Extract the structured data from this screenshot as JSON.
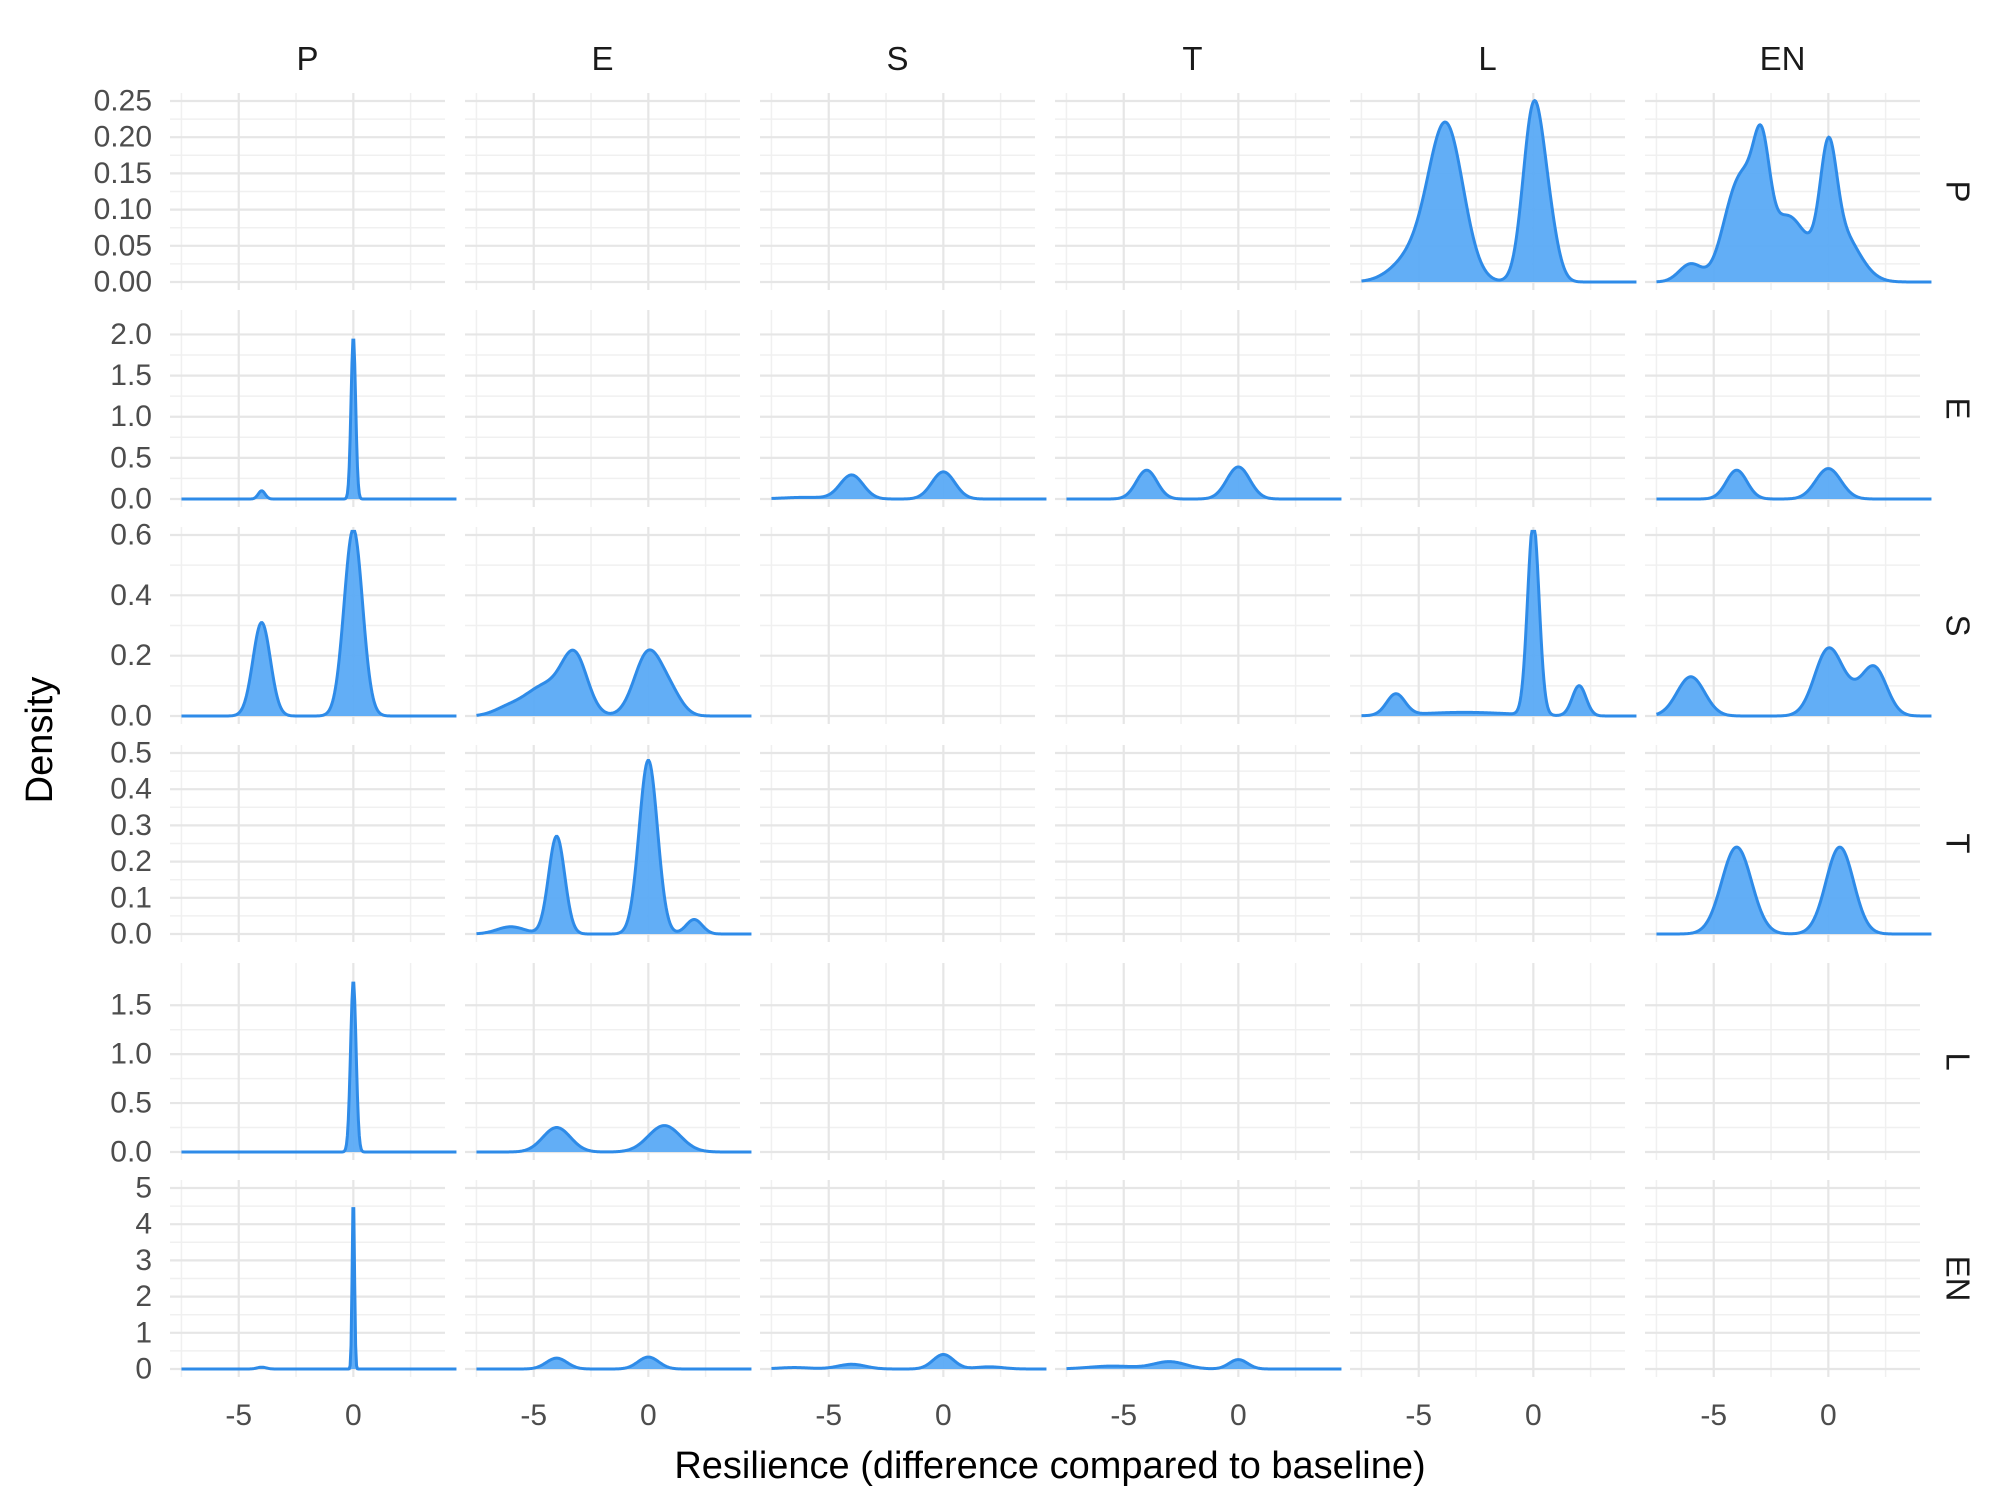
{
  "chart_data": {
    "type": "area",
    "title": "",
    "xlabel": "Resilience (difference compared to baseline)",
    "ylabel": "Density",
    "x_ticks": [
      "-5",
      "0"
    ],
    "xlim": [
      -8,
      4
    ],
    "grid": true,
    "fill_color": "#5aaaf5",
    "line_color": "#2e8be8",
    "col_strips": [
      "P",
      "E",
      "S",
      "T",
      "L",
      "EN"
    ],
    "row_strips": [
      "P",
      "E",
      "S",
      "T",
      "L",
      "EN"
    ],
    "rows": [
      {
        "label": "P",
        "ylim": [
          0,
          0.25
        ],
        "y_ticks": [
          "0.00",
          "0.05",
          "0.10",
          "0.15",
          "0.20",
          "0.25"
        ],
        "panels": [
          null,
          null,
          null,
          null,
          {
            "components": [
              [
                -5.2,
                0.9,
                0.035
              ],
              [
                -3.8,
                0.75,
                0.21
              ],
              [
                0.0,
                0.45,
                0.236
              ],
              [
                0.7,
                0.4,
                0.06
              ]
            ]
          },
          {
            "components": [
              [
                -6.0,
                0.5,
                0.025
              ],
              [
                -4.2,
                0.55,
                0.09
              ],
              [
                -3.5,
                0.5,
                0.09
              ],
              [
                -2.9,
                0.35,
                0.13
              ],
              [
                -1.8,
                0.8,
                0.09
              ],
              [
                0.0,
                0.35,
                0.135
              ],
              [
                0.5,
                0.8,
                0.07
              ]
            ]
          }
        ]
      },
      {
        "label": "E",
        "ylim": [
          0,
          2.2
        ],
        "y_ticks": [
          "0.0",
          "0.5",
          "1.0",
          "1.5",
          "2.0"
        ],
        "panels": [
          {
            "components": [
              [
                -4.0,
                0.15,
                0.1
              ],
              [
                0.0,
                0.1,
                1.97
              ]
            ]
          },
          null,
          {
            "components": [
              [
                -4.0,
                0.5,
                0.29
              ],
              [
                0.0,
                0.5,
                0.33
              ],
              [
                -6.0,
                1.0,
                0.02
              ]
            ]
          },
          {
            "components": [
              [
                -4.0,
                0.45,
                0.35
              ],
              [
                0.0,
                0.5,
                0.39
              ]
            ]
          },
          null,
          {
            "components": [
              [
                -4.0,
                0.45,
                0.35
              ],
              [
                0.0,
                0.55,
                0.37
              ]
            ]
          }
        ]
      },
      {
        "label": "S",
        "ylim": [
          0,
          0.6
        ],
        "y_ticks": [
          "0.0",
          "0.2",
          "0.4",
          "0.6"
        ],
        "panels": [
          {
            "components": [
              [
                -4.0,
                0.38,
                0.31
              ],
              [
                0.0,
                0.4,
                0.62
              ]
            ]
          },
          {
            "components": [
              [
                -3.2,
                0.55,
                0.18
              ],
              [
                -4.5,
                0.9,
                0.1
              ],
              [
                0.0,
                0.6,
                0.21
              ],
              [
                1.0,
                0.5,
                0.06
              ],
              [
                -6.2,
                0.6,
                0.02
              ]
            ]
          },
          null,
          null,
          {
            "components": [
              [
                0.0,
                0.25,
                0.64
              ],
              [
                2.0,
                0.3,
                0.1
              ],
              [
                -6.0,
                0.4,
                0.07
              ],
              [
                -3.0,
                2.0,
                0.012
              ]
            ]
          },
          {
            "components": [
              [
                -6.0,
                0.6,
                0.13
              ],
              [
                0.0,
                0.6,
                0.22
              ],
              [
                2.0,
                0.55,
                0.16
              ],
              [
                1.0,
                0.5,
                0.04
              ]
            ]
          }
        ]
      },
      {
        "label": "T",
        "ylim": [
          0,
          0.5
        ],
        "y_ticks": [
          "0.0",
          "0.1",
          "0.2",
          "0.3",
          "0.4",
          "0.5"
        ],
        "panels": [
          null,
          {
            "components": [
              [
                -4.0,
                0.35,
                0.27
              ],
              [
                0.0,
                0.4,
                0.48
              ],
              [
                2.0,
                0.35,
                0.04
              ],
              [
                -6.0,
                0.6,
                0.02
              ]
            ]
          },
          null,
          null,
          null,
          {
            "components": [
              [
                -4.0,
                0.65,
                0.24
              ],
              [
                0.5,
                0.6,
                0.24
              ]
            ]
          }
        ]
      },
      {
        "label": "L",
        "ylim": [
          0,
          1.85
        ],
        "y_ticks": [
          "0.0",
          "0.5",
          "1.0",
          "1.5"
        ],
        "panels": [
          {
            "components": [
              [
                0.0,
                0.12,
                1.75
              ]
            ]
          },
          {
            "components": [
              [
                -4.0,
                0.6,
                0.25
              ],
              [
                0.7,
                0.7,
                0.27
              ]
            ]
          },
          null,
          null,
          null,
          null
        ]
      },
      {
        "label": "EN",
        "ylim": [
          0,
          5
        ],
        "y_ticks": [
          "0",
          "1",
          "2",
          "3",
          "4",
          "5"
        ],
        "panels": [
          {
            "components": [
              [
                0.0,
                0.05,
                4.8
              ],
              [
                -4.0,
                0.2,
                0.05
              ]
            ]
          },
          {
            "components": [
              [
                -4.0,
                0.45,
                0.3
              ],
              [
                0.0,
                0.45,
                0.33
              ]
            ]
          },
          {
            "components": [
              [
                -4.0,
                0.6,
                0.13
              ],
              [
                0.0,
                0.45,
                0.4
              ],
              [
                2.0,
                0.6,
                0.06
              ],
              [
                -6.5,
                0.7,
                0.04
              ]
            ]
          },
          {
            "components": [
              [
                -3.0,
                0.7,
                0.2
              ],
              [
                0.0,
                0.4,
                0.26
              ],
              [
                -5.5,
                1.0,
                0.08
              ]
            ]
          },
          null,
          null
        ]
      }
    ]
  }
}
